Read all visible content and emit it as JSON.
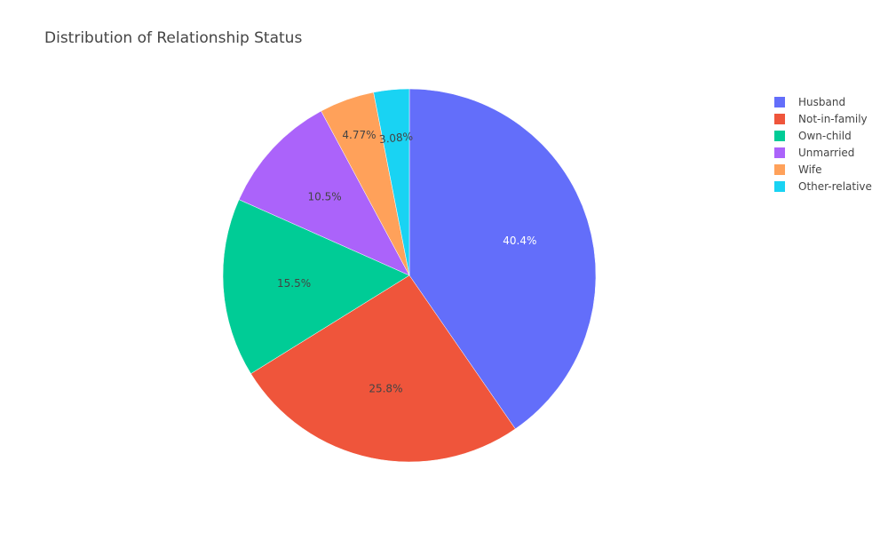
{
  "chart_data": {
    "type": "pie",
    "title": "Distribution of Relationship Status",
    "legend_position": "top-right",
    "slices": [
      {
        "label": "Husband",
        "value": 40.4,
        "text": "40.4%",
        "color": "#636efa",
        "label_color": "#ffffff"
      },
      {
        "label": "Not-in-family",
        "value": 25.8,
        "text": "25.8%",
        "color": "#ef553b",
        "label_color": "#444444"
      },
      {
        "label": "Own-child",
        "value": 15.5,
        "text": "15.5%",
        "color": "#00cc96",
        "label_color": "#444444"
      },
      {
        "label": "Unmarried",
        "value": 10.5,
        "text": "10.5%",
        "color": "#ab63fa",
        "label_color": "#444444"
      },
      {
        "label": "Wife",
        "value": 4.77,
        "text": "4.77%",
        "color": "#ffa15a",
        "label_color": "#444444"
      },
      {
        "label": "Other-relative",
        "value": 3.08,
        "text": "3.08%",
        "color": "#19d3f3",
        "label_color": "#444444"
      }
    ]
  }
}
